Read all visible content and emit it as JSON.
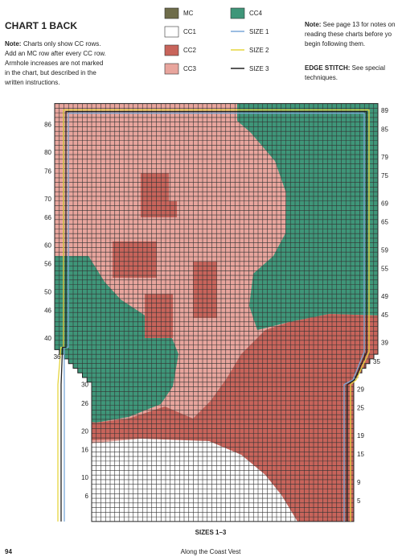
{
  "header": {
    "title": "CHART 1 BACK",
    "note_label": "Note:",
    "note_lines": [
      "Charts only show CC rows.",
      "Add an MC row after every CC row.",
      "Armhole increases are not marked",
      "in the chart, but described in the",
      "written instructions."
    ]
  },
  "legend": [
    {
      "label": "MC",
      "color": "#6e6c4a",
      "kind": "swatch"
    },
    {
      "label": "CC1",
      "color": "#ffffff",
      "kind": "swatch"
    },
    {
      "label": "CC2",
      "color": "#c8645b",
      "kind": "swatch"
    },
    {
      "label": "CC3",
      "color": "#e8a59d",
      "kind": "swatch"
    },
    {
      "label": "CC4",
      "color": "#3f9679",
      "kind": "swatch"
    },
    {
      "label": "SIZE 1",
      "color": "#7aa7d8",
      "kind": "line"
    },
    {
      "label": "SIZE 2",
      "color": "#e6d53f",
      "kind": "line"
    },
    {
      "label": "SIZE 3",
      "color": "#222222",
      "kind": "line"
    }
  ],
  "side_note": {
    "label": "Note:",
    "lines": [
      " See page 13 for notes on",
      "reading these charts before yo",
      "begin following them."
    ],
    "edge_label": "EDGE STITCH:",
    "edge_lines": [
      " See special",
      "techniques."
    ]
  },
  "chart": {
    "left_rows": [
      86,
      80,
      76,
      70,
      66,
      60,
      56,
      50,
      46,
      40,
      36,
      30,
      26,
      20,
      16,
      10,
      6
    ],
    "right_rows": [
      89,
      85,
      79,
      75,
      69,
      65,
      59,
      55,
      49,
      45,
      39,
      35,
      29,
      25,
      19,
      15,
      9,
      5
    ],
    "caption": "SIZES 1–3"
  },
  "footer": {
    "page": "94",
    "title": "Along the Coast Vest"
  }
}
